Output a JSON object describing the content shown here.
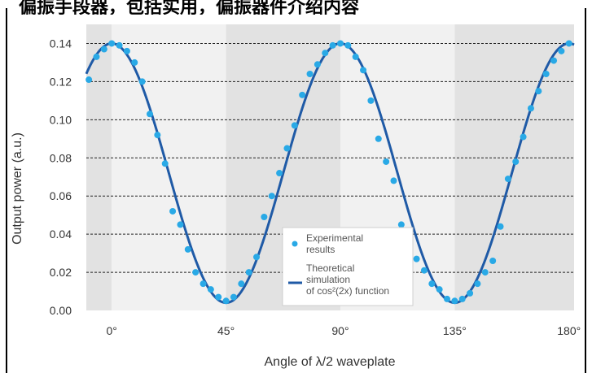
{
  "header": {
    "cropped_text": "偏振手段器，包括实用，偏振器件介绍内容"
  },
  "chart_data": {
    "type": "scatter",
    "title": "",
    "xlabel": "Angle of λ/2 waveplate",
    "ylabel": "Output power (a.u.)",
    "xlim": [
      -10,
      182
    ],
    "ylim": [
      0,
      0.15
    ],
    "x_ticks": [
      0,
      45,
      90,
      135,
      180
    ],
    "x_tick_labels": [
      "0°",
      "45°",
      "90°",
      "135°",
      "180°"
    ],
    "y_ticks": [
      0.0,
      0.02,
      0.04,
      0.06,
      0.08,
      0.1,
      0.12,
      0.14
    ],
    "y_tick_labels": [
      "0.00",
      "0.02",
      "0.04",
      "0.06",
      "0.08",
      "0.10",
      "0.12",
      "0.14"
    ],
    "grid": "horizontal dashed",
    "background_bands": "alternating shaded 45° intervals",
    "legend": {
      "placement": "bottom-center"
    },
    "series": [
      {
        "name": "Experimental results",
        "kind": "scatter",
        "color": "#29a9e6",
        "x": [
          -9,
          -6,
          -3,
          0,
          3,
          6,
          9,
          12,
          15,
          18,
          21,
          24,
          27,
          30,
          33,
          36,
          39,
          42,
          45,
          48,
          51,
          54,
          57,
          60,
          63,
          66,
          69,
          72,
          75,
          78,
          81,
          84,
          87,
          90,
          93,
          96,
          99,
          102,
          105,
          108,
          111,
          114,
          117,
          120,
          123,
          126,
          129,
          132,
          135,
          138,
          141,
          144,
          147,
          150,
          153,
          156,
          159,
          162,
          165,
          168,
          171,
          174,
          177,
          180
        ],
        "y": [
          0.121,
          0.133,
          0.137,
          0.14,
          0.139,
          0.136,
          0.13,
          0.12,
          0.103,
          0.092,
          0.077,
          0.052,
          0.045,
          0.032,
          0.02,
          0.014,
          0.011,
          0.007,
          0.005,
          0.007,
          0.014,
          0.02,
          0.028,
          0.049,
          0.06,
          0.072,
          0.085,
          0.097,
          0.113,
          0.124,
          0.129,
          0.135,
          0.139,
          0.14,
          0.139,
          0.133,
          0.126,
          0.11,
          0.09,
          0.078,
          0.068,
          0.045,
          0.035,
          0.027,
          0.021,
          0.014,
          0.011,
          0.006,
          0.005,
          0.006,
          0.009,
          0.014,
          0.02,
          0.026,
          0.044,
          0.069,
          0.078,
          0.091,
          0.106,
          0.115,
          0.124,
          0.131,
          0.136,
          0.14
        ]
      },
      {
        "name": "Theoretical simulation of cos²(2x) function",
        "kind": "line",
        "color": "#1f5aa6",
        "function": "0.004 + 0.136*cos²(2x)",
        "x_range": [
          -10,
          182
        ]
      }
    ]
  },
  "legend_labels": {
    "experimental_1": "Experimental",
    "experimental_2": "results",
    "theoretical_1": "Theoretical",
    "theoretical_2": "simulation",
    "theoretical_3": "of cos²(2x) function"
  }
}
